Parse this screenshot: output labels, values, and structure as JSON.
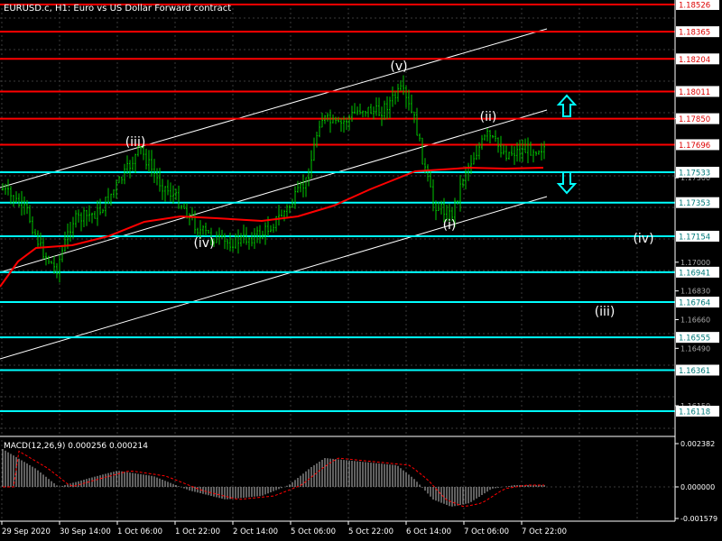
{
  "header": {
    "title": "EURUSD.c, H1:  Euro vs US Dollar Forward contract"
  },
  "colors": {
    "background": "#000000",
    "grid": "#3a3a3a",
    "candle": "#00c800",
    "resistance": "#ff0000",
    "support": "#00ffff",
    "ma": "#ff0000",
    "channel": "#ffffff",
    "macd_hist": "#c0c0c0",
    "macd_signal": "#ff0000",
    "axis_text": "#ffffff"
  },
  "main_axis": {
    "price_ticks": [
      "1.17850",
      "1.17500",
      "1.17000",
      "1.16830",
      "1.16660",
      "1.16490",
      "1.16150"
    ]
  },
  "levels": {
    "resistance": [
      "1.18526",
      "1.18365",
      "1.18204",
      "1.18011",
      "1.17850",
      "1.17696"
    ],
    "support": [
      "1.17533",
      "1.17353",
      "1.17154",
      "1.16941",
      "1.16764",
      "1.16555",
      "1.16361",
      "1.16118"
    ]
  },
  "wave_labels": [
    {
      "text": "(v)"
    },
    {
      "text": "(iii)"
    },
    {
      "text": "(iv)"
    },
    {
      "text": "(ii)"
    },
    {
      "text": "(i)"
    },
    {
      "text": "(iv)"
    },
    {
      "text": "(iii)"
    }
  ],
  "arrows": [
    {
      "name": "up-arrow-icon",
      "direction": "up"
    },
    {
      "name": "down-arrow-icon",
      "direction": "down"
    }
  ],
  "macd": {
    "title": "MACD(12,26,9) 0.000256 0.000214",
    "ticks": [
      "0.002382",
      "0.000000",
      "-0.001579"
    ]
  },
  "time_axis": {
    "labels": [
      "29 Sep 2020",
      "30 Sep 14:00",
      "1 Oct 06:00",
      "1 Oct 22:00",
      "2 Oct 14:00",
      "5 Oct 06:00",
      "5 Oct 22:00",
      "6 Oct 14:00",
      "7 Oct 06:00",
      "7 Oct 22:00"
    ]
  }
}
